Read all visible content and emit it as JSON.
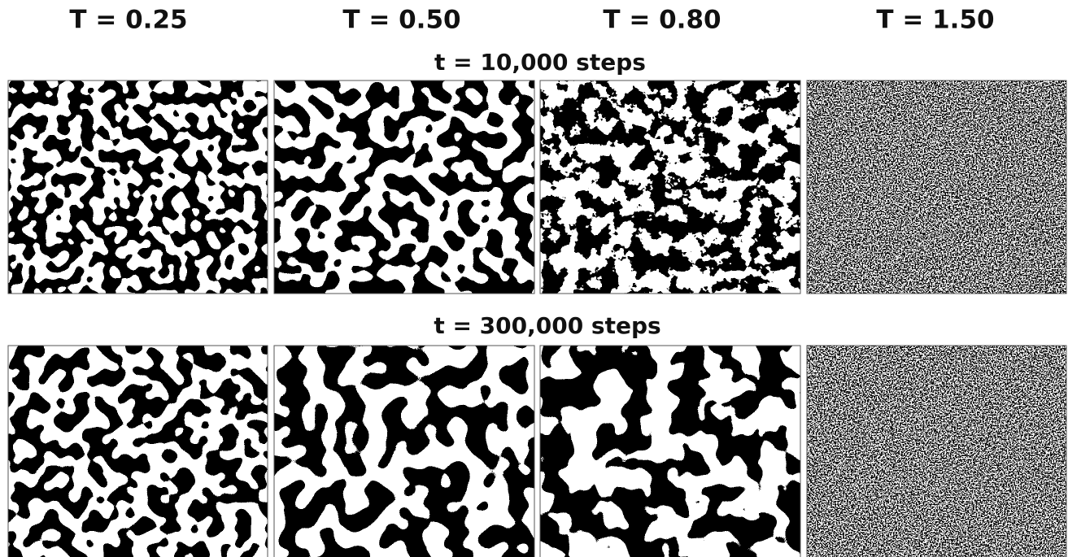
{
  "columns": [
    "T = 0.25",
    "T = 0.50",
    "T = 0.80",
    "T = 1.50"
  ],
  "rows": [
    {
      "title": "t = 10,000 steps"
    },
    {
      "title": "t = 300,000 steps"
    }
  ]
}
